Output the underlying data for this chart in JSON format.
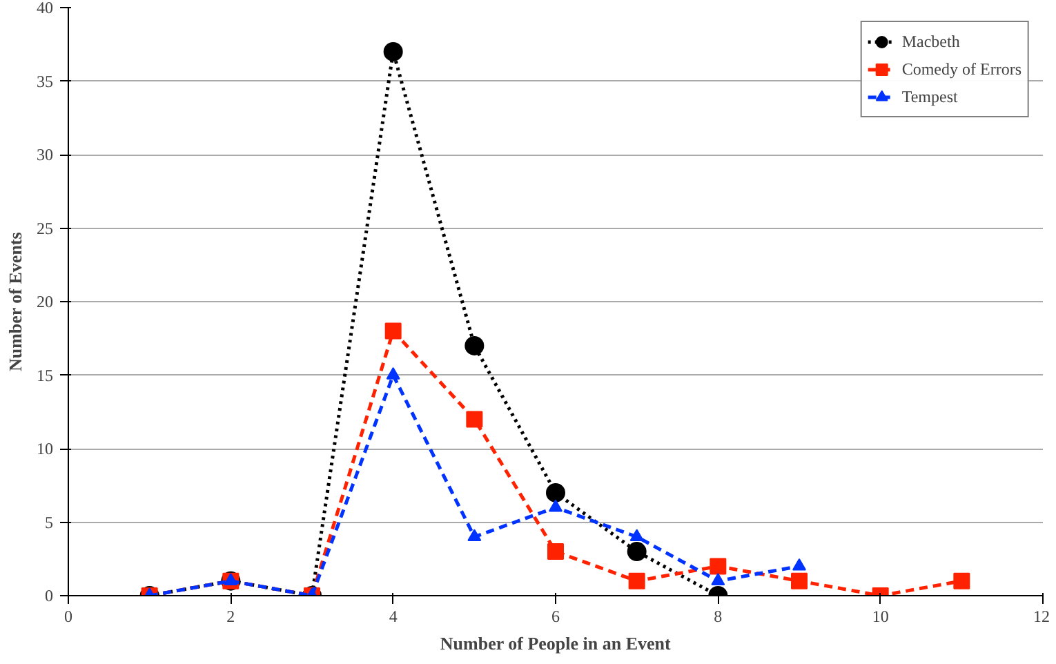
{
  "chart_data": {
    "type": "line",
    "xlabel": "Number of People in an Event",
    "ylabel": "Number of Events",
    "xlim": [
      0,
      12
    ],
    "ylim": [
      0,
      40
    ],
    "xticks": [
      0,
      2,
      4,
      6,
      8,
      10,
      12
    ],
    "yticks": [
      0,
      5,
      10,
      15,
      20,
      25,
      30,
      35,
      40
    ],
    "grid": "y",
    "legend": "top right",
    "series": [
      {
        "name": "Macbeth",
        "color": "#000000",
        "marker": "circle",
        "line_style": "dotted",
        "x": [
          1,
          2,
          3,
          4,
          5,
          6,
          7,
          8
        ],
        "values": [
          0,
          1,
          0,
          37,
          17,
          7,
          3,
          0
        ]
      },
      {
        "name": "Comedy of Errors",
        "color": "#ff2200",
        "marker": "square",
        "line_style": "dashed",
        "x": [
          1,
          2,
          3,
          4,
          5,
          6,
          7,
          8,
          9,
          10,
          11
        ],
        "values": [
          0,
          1,
          0,
          18,
          12,
          3,
          1,
          2,
          1,
          0,
          1
        ]
      },
      {
        "name": "Tempest",
        "color": "#0033ff",
        "marker": "triangle",
        "line_style": "dashed",
        "x": [
          1,
          2,
          3,
          4,
          5,
          6,
          7,
          8,
          9
        ],
        "values": [
          0,
          1,
          0,
          15,
          4,
          6,
          4,
          1,
          2
        ]
      }
    ]
  }
}
